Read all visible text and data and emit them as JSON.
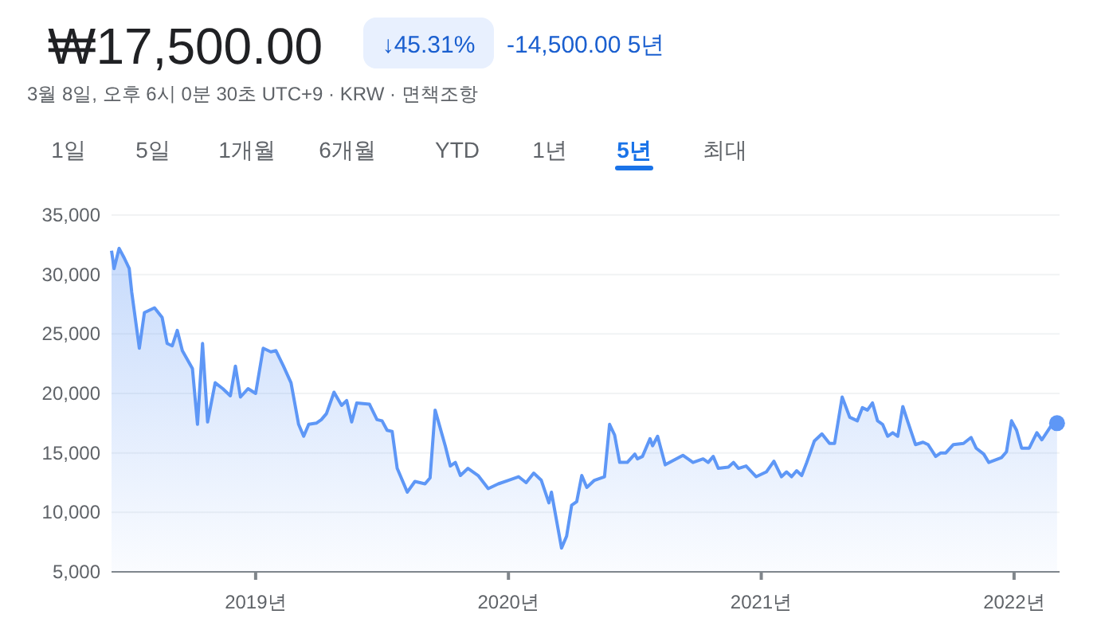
{
  "chart_data": {
    "type": "area",
    "title": "₩17,500.00",
    "subtitle": "3월 8일, 오후 6시 0분 30초 UTC+9 · KRW · 면책조항",
    "annotations": [
      "↓45.31%",
      "-14,500.00 5년",
      "1일",
      "5일",
      "1개월",
      "6개월",
      "YTD",
      "1년",
      "5년",
      "최대"
    ],
    "xlim": [
      2018.43,
      2022.18
    ],
    "xticks": [
      {
        "value": 2019,
        "label": "2019년"
      },
      {
        "value": 2020,
        "label": "2020년"
      },
      {
        "value": 2021,
        "label": "2021년"
      },
      {
        "value": 2022,
        "label": "2022년"
      }
    ],
    "ylim": [
      5000,
      35000
    ],
    "yticks": [
      {
        "value": 5000,
        "label": "5,000"
      },
      {
        "value": 10000,
        "label": "10,000"
      },
      {
        "value": 15000,
        "label": "15,000"
      },
      {
        "value": 20000,
        "label": "20,000"
      },
      {
        "value": 25000,
        "label": "25,000"
      },
      {
        "value": 30000,
        "label": "30,000"
      },
      {
        "value": 35000,
        "label": "35,000"
      }
    ],
    "grid": "y",
    "series": [
      {
        "color": "#5e97f6",
        "x": [
          2018.43,
          2018.44,
          2018.46,
          2018.48,
          2018.5,
          2018.51,
          2018.54,
          2018.56,
          2018.6,
          2018.63,
          2018.65,
          2018.67,
          2018.69,
          2018.71,
          2018.75,
          2018.77,
          2018.79,
          2018.81,
          2018.84,
          2018.87,
          2018.9,
          2018.92,
          2018.94,
          2018.97,
          2019.0,
          2019.03,
          2019.06,
          2019.08,
          2019.11,
          2019.14,
          2019.17,
          2019.19,
          2019.21,
          2019.24,
          2019.26,
          2019.28,
          2019.31,
          2019.34,
          2019.36,
          2019.38,
          2019.4,
          2019.45,
          2019.48,
          2019.5,
          2019.52,
          2019.54,
          2019.56,
          2019.6,
          2019.63,
          2019.67,
          2019.69,
          2019.71,
          2019.75,
          2019.77,
          2019.79,
          2019.81,
          2019.84,
          2019.88,
          2019.92,
          2019.96,
          2020.0,
          2020.04,
          2020.07,
          2020.1,
          2020.13,
          2020.16,
          2020.17,
          2020.21,
          2020.23,
          2020.25,
          2020.27,
          2020.29,
          2020.31,
          2020.34,
          2020.38,
          2020.4,
          2020.42,
          2020.44,
          2020.47,
          2020.5,
          2020.51,
          2020.53,
          2020.56,
          2020.57,
          2020.59,
          2020.62,
          2020.69,
          2020.73,
          2020.77,
          2020.79,
          2020.81,
          2020.83,
          2020.87,
          2020.89,
          2020.91,
          2020.94,
          2020.98,
          2021.02,
          2021.05,
          2021.08,
          2021.1,
          2021.12,
          2021.14,
          2021.16,
          2021.18,
          2021.21,
          2021.24,
          2021.27,
          2021.29,
          2021.32,
          2021.35,
          2021.38,
          2021.4,
          2021.42,
          2021.44,
          2021.46,
          2021.48,
          2021.5,
          2021.52,
          2021.54,
          2021.56,
          2021.58,
          2021.61,
          2021.64,
          2021.66,
          2021.69,
          2021.71,
          2021.73,
          2021.76,
          2021.8,
          2021.83,
          2021.85,
          2021.88,
          2021.9,
          2021.95,
          2021.97,
          2021.99,
          2022.01,
          2022.03,
          2022.06,
          2022.09,
          2022.11,
          2022.15,
          2022.17
        ],
        "values": [
          32000,
          30500,
          32200,
          31400,
          30500,
          28500,
          23800,
          26800,
          27200,
          26400,
          24200,
          24000,
          25300,
          23600,
          22100,
          17400,
          24200,
          17600,
          20900,
          20400,
          19800,
          22300,
          19700,
          20400,
          20000,
          23800,
          23500,
          23600,
          22300,
          20900,
          17400,
          16400,
          17400,
          17500,
          17800,
          18300,
          20100,
          19000,
          19400,
          17600,
          19200,
          19100,
          17800,
          17700,
          16900,
          16800,
          13700,
          11700,
          12600,
          12400,
          12900,
          18600,
          15600,
          13900,
          14200,
          13100,
          13700,
          13100,
          12000,
          12400,
          12700,
          13000,
          12500,
          13300,
          12700,
          10800,
          11700,
          7000,
          8000,
          10600,
          10900,
          13100,
          12100,
          12700,
          13000,
          17400,
          16500,
          14200,
          14200,
          14900,
          14500,
          14700,
          16200,
          15600,
          16400,
          14000,
          14800,
          14200,
          14500,
          14200,
          14700,
          13700,
          13800,
          14200,
          13700,
          13900,
          13000,
          13400,
          14300,
          13000,
          13400,
          13000,
          13500,
          13100,
          14200,
          16000,
          16600,
          15800,
          15800,
          19700,
          18000,
          17700,
          18800,
          18600,
          19200,
          17700,
          17400,
          16400,
          16700,
          16400,
          18900,
          17600,
          15700,
          15900,
          15700,
          14700,
          15000,
          15000,
          15700,
          15800,
          16300,
          15400,
          14900,
          14200,
          14600,
          15100,
          17700,
          16900,
          15400,
          15400,
          16700,
          16100,
          17400,
          17500
        ]
      }
    ]
  }
}
